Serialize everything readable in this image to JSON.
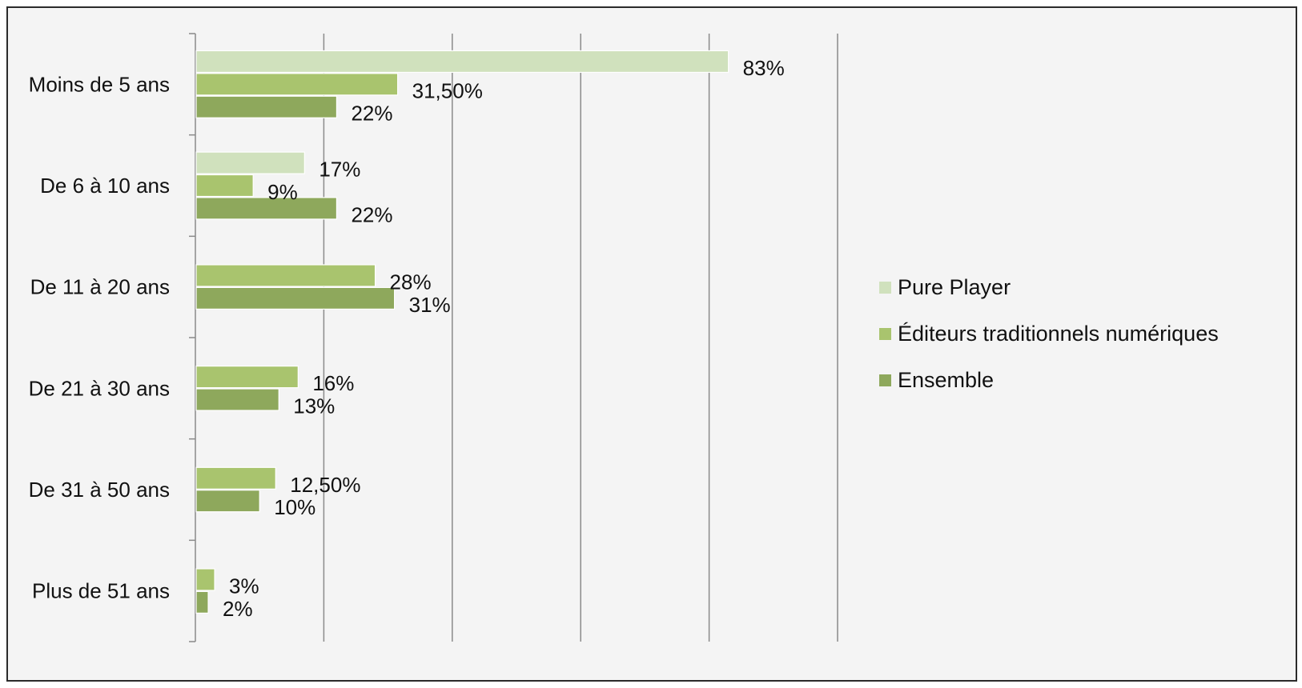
{
  "chart_data": {
    "type": "bar",
    "orientation": "horizontal",
    "categories": [
      "Moins de 5 ans",
      "De 6 à 10 ans",
      "De 11 à 20 ans",
      "De 21 à 30 ans",
      "De 31 à 50 ans",
      "Plus de 51 ans"
    ],
    "series": [
      {
        "name": "Pure Player",
        "color": "#d0e1bd",
        "values": [
          83,
          17,
          null,
          null,
          null,
          null
        ],
        "labels": [
          "83%",
          "17%",
          null,
          null,
          null,
          null
        ]
      },
      {
        "name": "Éditeurs traditionnels numériques",
        "color": "#a9c46e",
        "values": [
          31.5,
          9,
          28,
          16,
          12.5,
          3
        ],
        "labels": [
          "31,50%",
          "9%",
          "28%",
          "16%",
          "12,50%",
          "3%"
        ]
      },
      {
        "name": "Ensemble",
        "color": "#8ea85c",
        "values": [
          22,
          22,
          31,
          13,
          10,
          2
        ],
        "labels": [
          "22%",
          "22%",
          "31%",
          "13%",
          "10%",
          "2%"
        ]
      }
    ],
    "xlim": [
      0,
      100
    ],
    "x_gridlines": [
      20,
      40,
      60,
      80,
      100
    ],
    "x_tick_labels_shown": false,
    "grid": true,
    "legend_position": "right"
  }
}
